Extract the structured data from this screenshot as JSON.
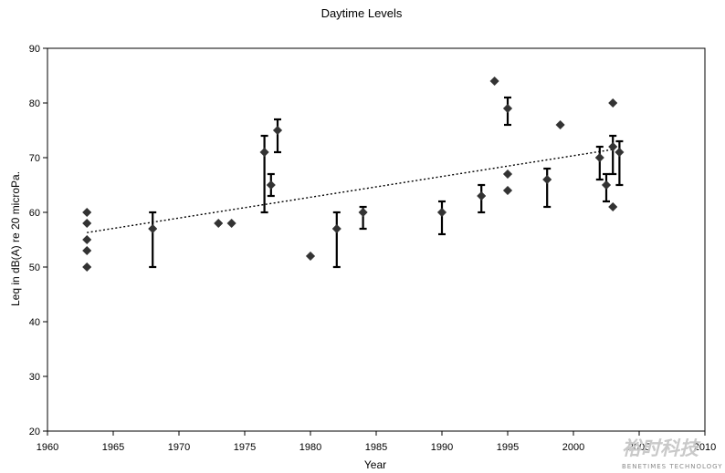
{
  "chart_data": {
    "type": "scatter",
    "title": "Daytime Levels",
    "xlabel": "Year",
    "ylabel": "Leq in dB(A) re 20 microPa.",
    "xlim": [
      1960,
      2010
    ],
    "ylim": [
      20,
      90
    ],
    "xticks": [
      1960,
      1965,
      1970,
      1975,
      1980,
      1985,
      1990,
      1995,
      2000,
      2005,
      2010
    ],
    "yticks": [
      20,
      30,
      40,
      50,
      60,
      70,
      80,
      90
    ],
    "grid": false,
    "legend": "none",
    "marker": "diamond",
    "marker_color": "#333333",
    "points": [
      {
        "x": 1963,
        "y": 60
      },
      {
        "x": 1963,
        "y": 58
      },
      {
        "x": 1963,
        "y": 55
      },
      {
        "x": 1963,
        "y": 53
      },
      {
        "x": 1963,
        "y": 50
      },
      {
        "x": 1968,
        "y": 57,
        "low": 50,
        "high": 60
      },
      {
        "x": 1973,
        "y": 58
      },
      {
        "x": 1974,
        "y": 58
      },
      {
        "x": 1976.5,
        "y": 71,
        "low": 60,
        "high": 74
      },
      {
        "x": 1977,
        "y": 65,
        "low": 63,
        "high": 67
      },
      {
        "x": 1977.5,
        "y": 75,
        "low": 71,
        "high": 77
      },
      {
        "x": 1980,
        "y": 52
      },
      {
        "x": 1982,
        "y": 57,
        "low": 50,
        "high": 60
      },
      {
        "x": 1984,
        "y": 60,
        "low": 57,
        "high": 61
      },
      {
        "x": 1990,
        "y": 60,
        "low": 56,
        "high": 62
      },
      {
        "x": 1993,
        "y": 63,
        "low": 60,
        "high": 65
      },
      {
        "x": 1994,
        "y": 84
      },
      {
        "x": 1995,
        "y": 79,
        "low": 76,
        "high": 81
      },
      {
        "x": 1995,
        "y": 67
      },
      {
        "x": 1995,
        "y": 64
      },
      {
        "x": 1998,
        "y": 66,
        "low": 61,
        "high": 68
      },
      {
        "x": 1999,
        "y": 76
      },
      {
        "x": 2002,
        "y": 70,
        "low": 66,
        "high": 72
      },
      {
        "x": 2002.5,
        "y": 65,
        "low": 62,
        "high": 67
      },
      {
        "x": 2003,
        "y": 80
      },
      {
        "x": 2003,
        "y": 72,
        "low": 67,
        "high": 74
      },
      {
        "x": 2003,
        "y": 61
      },
      {
        "x": 2003.5,
        "y": 71,
        "low": 65,
        "high": 73
      }
    ],
    "trendline": {
      "style": "dotted",
      "x": [
        1963,
        2003
      ],
      "y": [
        56.3,
        71.5
      ]
    }
  },
  "watermark": {
    "text_cn": "裕时科技",
    "text_en": "BENETIMES TECHNOLOGY"
  }
}
